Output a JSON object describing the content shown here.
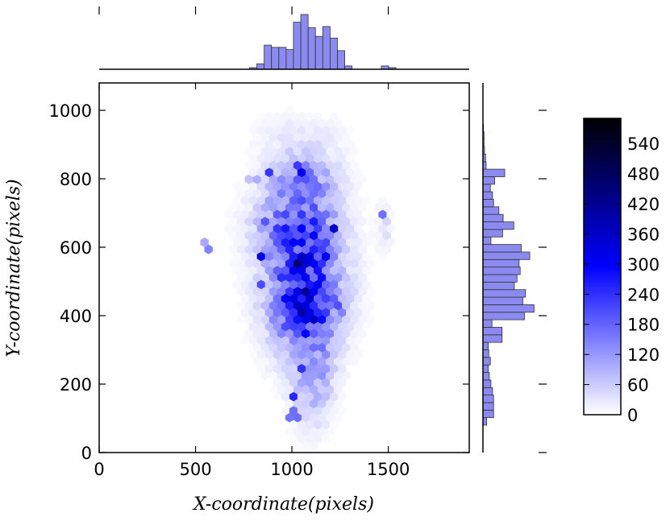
{
  "chart_data": {
    "type": "heatmap",
    "subtype": "hexbin-joint-plot",
    "title": "",
    "xlabel": "X-coordinate(pixels)",
    "ylabel": "Y-coordinate(pixels)",
    "xlim": [
      0,
      1920
    ],
    "ylim": [
      0,
      1080
    ],
    "xticks": [
      "0",
      "500",
      "1000",
      "1500"
    ],
    "yticks": [
      "0",
      "200",
      "400",
      "600",
      "800",
      "1000"
    ],
    "colormap": {
      "low": "#ffffff",
      "mid": "#0000ff",
      "high": "#000000"
    },
    "colorbar": {
      "min": 0,
      "max": 590,
      "ticks": [
        "0",
        "60",
        "120",
        "180",
        "240",
        "300",
        "360",
        "420",
        "480",
        "540"
      ]
    },
    "marginal_color": "#8a8af0",
    "clusters": [
      {
        "x": 1060,
        "y": 540,
        "sx": 130,
        "sy": 150,
        "w": 1.0
      },
      {
        "x": 1080,
        "y": 420,
        "sx": 110,
        "sy": 70,
        "w": 0.7
      },
      {
        "x": 1110,
        "y": 220,
        "sx": 70,
        "sy": 90,
        "w": 0.45
      },
      {
        "x": 1050,
        "y": 800,
        "sx": 120,
        "sy": 50,
        "w": 0.45
      },
      {
        "x": 1000,
        "y": 660,
        "sx": 140,
        "sy": 60,
        "w": 0.4
      },
      {
        "x": 1050,
        "y": 930,
        "sx": 160,
        "sy": 40,
        "w": 0.1
      },
      {
        "x": 1480,
        "y": 660,
        "sx": 25,
        "sy": 40,
        "w": 0.2
      }
    ],
    "hot_spots": [
      {
        "x": 1050,
        "y": 560,
        "v": 590
      },
      {
        "x": 1060,
        "y": 430,
        "v": 560
      },
      {
        "x": 980,
        "y": 520,
        "v": 430
      },
      {
        "x": 1180,
        "y": 570,
        "v": 520
      },
      {
        "x": 870,
        "y": 820,
        "v": 400
      },
      {
        "x": 1050,
        "y": 830,
        "v": 380
      },
      {
        "x": 860,
        "y": 680,
        "v": 360
      },
      {
        "x": 1210,
        "y": 660,
        "v": 520
      },
      {
        "x": 840,
        "y": 580,
        "v": 380
      },
      {
        "x": 1130,
        "y": 400,
        "v": 380
      },
      {
        "x": 1190,
        "y": 490,
        "v": 350
      },
      {
        "x": 850,
        "y": 490,
        "v": 260
      },
      {
        "x": 1060,
        "y": 250,
        "v": 280
      },
      {
        "x": 1010,
        "y": 160,
        "v": 240
      },
      {
        "x": 1130,
        "y": 180,
        "v": 220
      },
      {
        "x": 1010,
        "y": 110,
        "v": 230
      },
      {
        "x": 1140,
        "y": 350,
        "v": 260
      },
      {
        "x": 1260,
        "y": 420,
        "v": 280
      },
      {
        "x": 1050,
        "y": 720,
        "v": 240
      },
      {
        "x": 1480,
        "y": 700,
        "v": 180
      },
      {
        "x": 560,
        "y": 600,
        "v": 150
      },
      {
        "x": 800,
        "y": 800,
        "v": 180
      }
    ],
    "x_marginal": {
      "bin_width": 38,
      "bins": [
        {
          "x0": 780,
          "h": 0.03
        },
        {
          "x0": 818,
          "h": 0.1
        },
        {
          "x0": 856,
          "h": 0.44
        },
        {
          "x0": 894,
          "h": 0.4
        },
        {
          "x0": 932,
          "h": 0.4
        },
        {
          "x0": 970,
          "h": 0.36
        },
        {
          "x0": 1008,
          "h": 0.86
        },
        {
          "x0": 1046,
          "h": 1.0
        },
        {
          "x0": 1084,
          "h": 0.76
        },
        {
          "x0": 1122,
          "h": 0.6
        },
        {
          "x0": 1160,
          "h": 0.78
        },
        {
          "x0": 1198,
          "h": 0.57
        },
        {
          "x0": 1236,
          "h": 0.34
        },
        {
          "x0": 1274,
          "h": 0.06
        },
        {
          "x0": 1464,
          "h": 0.06
        },
        {
          "x0": 1502,
          "h": 0.03
        }
      ]
    },
    "y_marginal": {
      "bin_width": 22,
      "bins": [
        {
          "y0": 80,
          "h": 0.07
        },
        {
          "y0": 102,
          "h": 0.2
        },
        {
          "y0": 124,
          "h": 0.2
        },
        {
          "y0": 146,
          "h": 0.2
        },
        {
          "y0": 168,
          "h": 0.18
        },
        {
          "y0": 190,
          "h": 0.15
        },
        {
          "y0": 212,
          "h": 0.12
        },
        {
          "y0": 234,
          "h": 0.1
        },
        {
          "y0": 256,
          "h": 0.14
        },
        {
          "y0": 278,
          "h": 0.11
        },
        {
          "y0": 300,
          "h": 0.1
        },
        {
          "y0": 322,
          "h": 0.36
        },
        {
          "y0": 344,
          "h": 0.36
        },
        {
          "y0": 366,
          "h": 0.17
        },
        {
          "y0": 388,
          "h": 0.78
        },
        {
          "y0": 410,
          "h": 0.96
        },
        {
          "y0": 432,
          "h": 0.75
        },
        {
          "y0": 454,
          "h": 0.8
        },
        {
          "y0": 476,
          "h": 0.59
        },
        {
          "y0": 498,
          "h": 0.64
        },
        {
          "y0": 520,
          "h": 0.7
        },
        {
          "y0": 542,
          "h": 0.68
        },
        {
          "y0": 564,
          "h": 0.88
        },
        {
          "y0": 586,
          "h": 0.72
        },
        {
          "y0": 608,
          "h": 0.15
        },
        {
          "y0": 630,
          "h": 0.37
        },
        {
          "y0": 652,
          "h": 0.58
        },
        {
          "y0": 674,
          "h": 0.38
        },
        {
          "y0": 696,
          "h": 0.3
        },
        {
          "y0": 718,
          "h": 0.2
        },
        {
          "y0": 740,
          "h": 0.18
        },
        {
          "y0": 762,
          "h": 0.14
        },
        {
          "y0": 784,
          "h": 0.22
        },
        {
          "y0": 806,
          "h": 0.41
        },
        {
          "y0": 828,
          "h": 0.06
        },
        {
          "y0": 850,
          "h": 0.05
        },
        {
          "y0": 872,
          "h": 0.03
        },
        {
          "y0": 894,
          "h": 0.02
        },
        {
          "y0": 916,
          "h": 0.02
        },
        {
          "y0": 938,
          "h": 0.01
        }
      ]
    }
  }
}
